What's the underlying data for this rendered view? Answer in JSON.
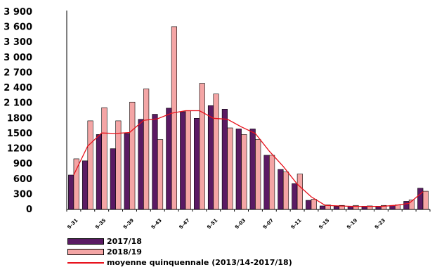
{
  "chart_data": {
    "type": "bar",
    "title": "",
    "xlabel": "",
    "ylabel": "",
    "ylim": [
      0,
      3900
    ],
    "yticks": [
      0,
      300,
      600,
      900,
      1200,
      1500,
      1800,
      2100,
      2400,
      2700,
      3000,
      3300,
      3600,
      3900
    ],
    "ytick_labels": [
      "0",
      "300",
      "600",
      "900",
      "1200",
      "1500",
      "1800",
      "2 100",
      "2 400",
      "2 700",
      "3 000",
      "3 300",
      "3 600",
      "3 900"
    ],
    "xtick_labels": [
      "S-31",
      "S-35",
      "S-39",
      "S-43",
      "S-47",
      "S-51",
      "S-03",
      "S-07",
      "S-11",
      "S-15",
      "S-19",
      "S-23"
    ],
    "categories": [
      "1",
      "2",
      "3",
      "4",
      "5",
      "6",
      "7",
      "8",
      "9",
      "10",
      "11",
      "12",
      "13",
      "14",
      "15",
      "16",
      "17",
      "18",
      "19",
      "20",
      "21",
      "22",
      "23",
      "24",
      "25",
      "26"
    ],
    "series": [
      {
        "name": "2017/18",
        "kind": "bar",
        "color": "#5a1a63",
        "values": [
          680,
          960,
          1480,
          1200,
          1500,
          1780,
          1880,
          2000,
          1930,
          1800,
          2050,
          1980,
          1590,
          1590,
          1070,
          790,
          510,
          180,
          70,
          60,
          60,
          50,
          50,
          80,
          160,
          420
        ]
      },
      {
        "name": "2018/19",
        "kind": "bar",
        "color": "#f4a5a5",
        "values": [
          1000,
          1750,
          2010,
          1750,
          2120,
          2380,
          1380,
          3610,
          1950,
          2490,
          2280,
          1610,
          1480,
          1380,
          1070,
          740,
          700,
          200,
          90,
          80,
          80,
          70,
          80,
          90,
          190,
          360
        ]
      },
      {
        "name": "moyenne quinquennale (2013/14-2017/18)",
        "kind": "line",
        "color": "#e8101a",
        "values": [
          680,
          1250,
          1510,
          1500,
          1520,
          1760,
          1790,
          1900,
          1950,
          1950,
          1800,
          1780,
          1630,
          1500,
          1150,
          850,
          500,
          250,
          80,
          70,
          60,
          60,
          60,
          80,
          120,
          350
        ]
      }
    ],
    "grid": false,
    "legend": "bottom-left"
  }
}
